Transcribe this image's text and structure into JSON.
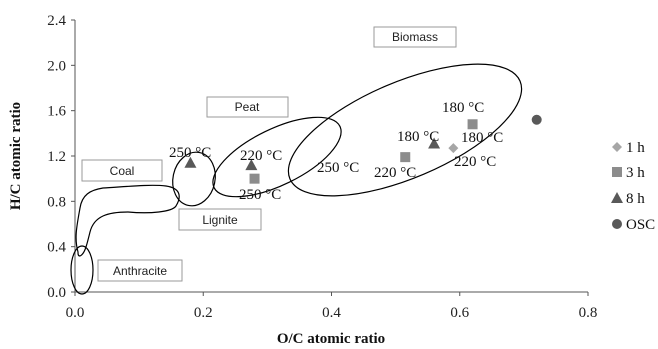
{
  "chart_data": {
    "type": "scatter",
    "xlabel": "O/C atomic ratio",
    "ylabel": "H/C atomic ratio",
    "xlim": [
      0,
      0.8
    ],
    "ylim": [
      0,
      2.4
    ],
    "xticks": [
      "0.0",
      "0.2",
      "0.4",
      "0.6",
      "0.8"
    ],
    "yticks": [
      "0.0",
      "0.4",
      "0.8",
      "1.2",
      "1.6",
      "2.0",
      "2.4"
    ],
    "grid": false,
    "legend_position": "right",
    "series": [
      {
        "name": "1 h",
        "marker": "diamond",
        "color": "#a6a6a6",
        "points": [
          {
            "x": 0.59,
            "y": 1.27
          }
        ]
      },
      {
        "name": "3 h",
        "marker": "square",
        "color": "#8c8c8c",
        "points": [
          {
            "x": 0.28,
            "y": 1.0
          },
          {
            "x": 0.515,
            "y": 1.19
          },
          {
            "x": 0.62,
            "y": 1.48
          }
        ]
      },
      {
        "name": "8 h",
        "marker": "triangle",
        "color": "#595959",
        "points": [
          {
            "x": 0.18,
            "y": 1.14
          },
          {
            "x": 0.275,
            "y": 1.12
          },
          {
            "x": 0.56,
            "y": 1.31
          }
        ]
      },
      {
        "name": "OSC",
        "marker": "circle",
        "color": "#595959",
        "points": [
          {
            "x": 0.72,
            "y": 1.52
          }
        ]
      }
    ],
    "regions": [
      {
        "label": "Biomass"
      },
      {
        "label": "Peat"
      },
      {
        "label": "Coal"
      },
      {
        "label": "Lignite"
      },
      {
        "label": "Anthracite"
      }
    ],
    "annotations": [
      {
        "text": "250 °C"
      },
      {
        "text": "220 °C"
      },
      {
        "text": "250 °C"
      },
      {
        "text": "250 °C"
      },
      {
        "text": "220 °C"
      },
      {
        "text": "180 °C"
      },
      {
        "text": "180 °C"
      },
      {
        "text": "180 °C"
      },
      {
        "text": "220 °C"
      }
    ]
  }
}
